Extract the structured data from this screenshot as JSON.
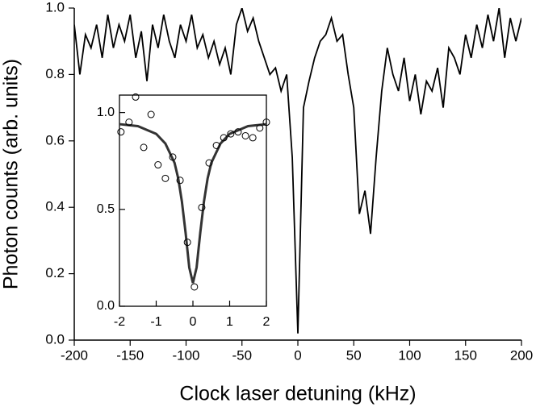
{
  "chart_data": [
    {
      "type": "line",
      "x_label": "Clock laser detuning (kHz)",
      "y_label": "Photon counts (arb. units)",
      "color": "#000000",
      "x": [
        -200,
        -195,
        -190,
        -185,
        -180,
        -175,
        -170,
        -165,
        -160,
        -155,
        -150,
        -145,
        -140,
        -135,
        -130,
        -125,
        -120,
        -115,
        -110,
        -105,
        -100,
        -95,
        -90,
        -85,
        -80,
        -75,
        -70,
        -65,
        -60,
        -55,
        -50,
        -45,
        -40,
        -35,
        -30,
        -25,
        -20,
        -15,
        -10,
        -5,
        0,
        5,
        10,
        15,
        20,
        25,
        30,
        35,
        40,
        45,
        50,
        55,
        60,
        65,
        70,
        75,
        80,
        85,
        90,
        95,
        100,
        105,
        110,
        115,
        120,
        125,
        130,
        135,
        140,
        145,
        150,
        155,
        160,
        165,
        170,
        175,
        180,
        185,
        190,
        195,
        200
      ],
      "values": [
        0.95,
        0.8,
        0.92,
        0.88,
        0.95,
        0.85,
        0.98,
        0.88,
        0.95,
        0.9,
        0.98,
        0.85,
        0.93,
        0.78,
        0.95,
        0.88,
        0.98,
        0.9,
        0.85,
        0.95,
        0.9,
        0.98,
        0.88,
        0.92,
        0.85,
        0.9,
        0.83,
        0.88,
        0.8,
        0.95,
        1.0,
        0.93,
        0.97,
        0.9,
        0.85,
        0.8,
        0.82,
        0.75,
        0.8,
        0.55,
        0.02,
        0.7,
        0.78,
        0.85,
        0.9,
        0.92,
        0.97,
        0.9,
        0.92,
        0.8,
        0.7,
        0.38,
        0.45,
        0.32,
        0.55,
        0.75,
        0.88,
        0.8,
        0.75,
        0.85,
        0.72,
        0.8,
        0.68,
        0.78,
        0.75,
        0.82,
        0.7,
        0.88,
        0.85,
        0.8,
        0.92,
        0.85,
        0.95,
        0.88,
        0.98,
        0.9,
        1.0,
        0.85,
        0.97,
        0.9,
        0.97
      ],
      "xlim": [
        -200,
        200
      ],
      "xticks": [
        -200,
        -150,
        -100,
        -50,
        0,
        50,
        100,
        150,
        200
      ],
      "ylim": [
        0,
        1
      ],
      "yticks": [
        {
          "value": 0,
          "label": "0.0"
        },
        0.2,
        0.4,
        0.6,
        0.8,
        {
          "value": 1,
          "label": "1.0"
        }
      ]
    },
    {
      "type": "scatter",
      "color": "#333333",
      "x": [
        -1.96,
        -1.74,
        -1.56,
        -1.34,
        -1.14,
        -0.95,
        -0.75,
        -0.55,
        -0.35,
        -0.15,
        0.04,
        0.24,
        0.44,
        0.64,
        0.84,
        1.03,
        1.23,
        1.43,
        1.63,
        1.82,
        2.0
      ],
      "values": [
        0.9,
        0.95,
        1.08,
        0.82,
        0.99,
        0.73,
        0.66,
        0.77,
        0.65,
        0.33,
        0.1,
        0.51,
        0.74,
        0.83,
        0.87,
        0.89,
        0.9,
        0.88,
        0.87,
        0.92,
        0.95
      ],
      "fit_x": [
        -2,
        -1.5,
        -1,
        -0.75,
        -0.5,
        -0.4,
        -0.3,
        -0.2,
        -0.1,
        0,
        0.1,
        0.2,
        0.3,
        0.4,
        0.5,
        0.75,
        1,
        1.5,
        2
      ],
      "fit_values": [
        0.94,
        0.93,
        0.89,
        0.84,
        0.74,
        0.66,
        0.54,
        0.38,
        0.2,
        0.12,
        0.2,
        0.38,
        0.54,
        0.66,
        0.74,
        0.84,
        0.89,
        0.93,
        0.94
      ],
      "xlim": [
        -2,
        2
      ],
      "xticks": [
        -2,
        -1,
        0,
        1,
        2
      ],
      "ylim": [
        0,
        1.09
      ],
      "yticks": [
        {
          "value": 0,
          "label": "0.0"
        },
        0.5,
        {
          "value": 1,
          "label": "1.0"
        }
      ]
    }
  ]
}
